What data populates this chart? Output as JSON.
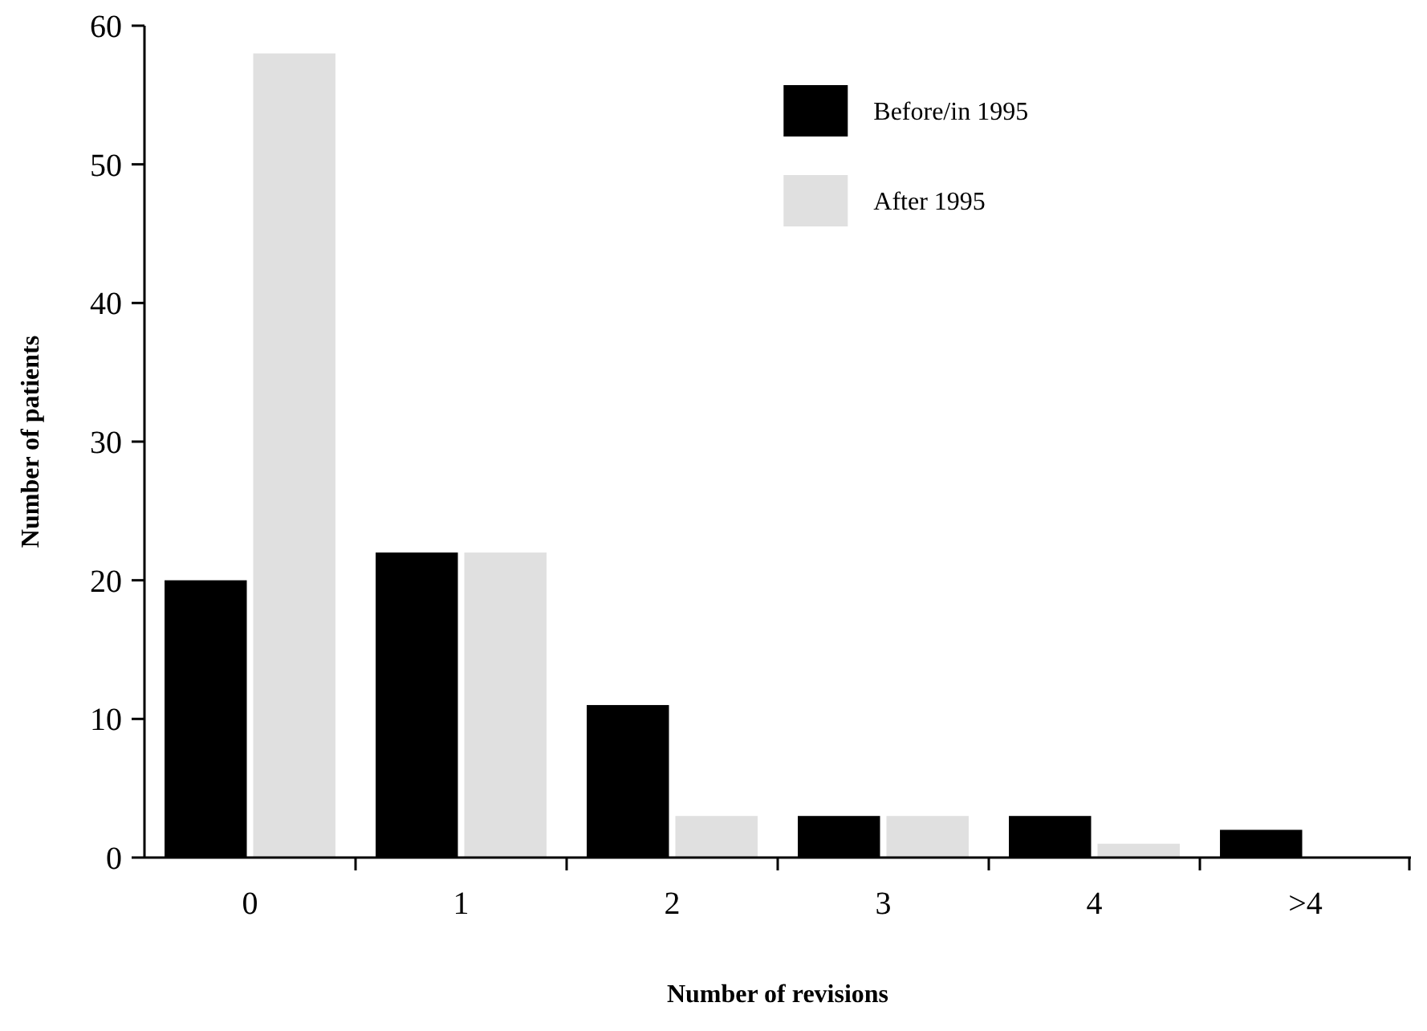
{
  "chart_data": {
    "type": "bar",
    "xlabel": "Number of revisions",
    "ylabel": "Number of patients",
    "categories": [
      "0",
      "1",
      "2",
      "3",
      "4",
      ">4"
    ],
    "series": [
      {
        "name": "Before/in 1995",
        "color": "#000000",
        "values": [
          20,
          22,
          11,
          3,
          3,
          2
        ]
      },
      {
        "name": "After 1995",
        "color": "#e0e0e0",
        "values": [
          58,
          22,
          3,
          3,
          1,
          0
        ]
      }
    ],
    "ylim": [
      0,
      60
    ],
    "yticks": [
      0,
      10,
      20,
      30,
      40,
      50,
      60
    ],
    "grid": false,
    "legend": "top right"
  }
}
